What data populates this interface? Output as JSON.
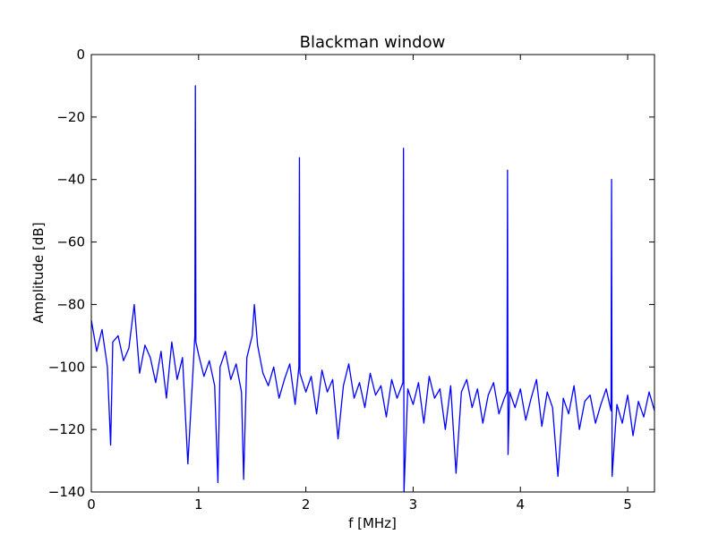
{
  "chart_data": {
    "type": "line",
    "title": "Blackman window",
    "xlabel": "f [MHz]",
    "ylabel": "Amplitude [dB]",
    "color": "#0000ff",
    "xlim": [
      0,
      5.25
    ],
    "ylim": [
      -140,
      0
    ],
    "xticks": [
      0,
      1,
      2,
      3,
      4,
      5
    ],
    "yticks": [
      {
        "value": -140,
        "label": "−140"
      },
      {
        "value": -120,
        "label": "−120"
      },
      {
        "value": -100,
        "label": "−100"
      },
      {
        "value": -80,
        "label": "−80"
      },
      {
        "value": -60,
        "label": "−60"
      },
      {
        "value": -40,
        "label": "−40"
      },
      {
        "value": -20,
        "label": "−20"
      },
      0
    ],
    "x": [
      0,
      0.05,
      0.1,
      0.15,
      0.18,
      0.2,
      0.25,
      0.3,
      0.35,
      0.4,
      0.45,
      0.5,
      0.55,
      0.6,
      0.65,
      0.7,
      0.75,
      0.8,
      0.85,
      0.9,
      0.95,
      0.965,
      0.97,
      0.975,
      1.0,
      1.05,
      1.1,
      1.15,
      1.18,
      1.2,
      1.25,
      1.3,
      1.35,
      1.4,
      1.42,
      1.45,
      1.5,
      1.52,
      1.55,
      1.6,
      1.65,
      1.7,
      1.75,
      1.8,
      1.85,
      1.9,
      1.935,
      1.94,
      1.945,
      2.0,
      2.05,
      2.1,
      2.15,
      2.2,
      2.25,
      2.3,
      2.35,
      2.4,
      2.45,
      2.5,
      2.55,
      2.6,
      2.65,
      2.7,
      2.75,
      2.8,
      2.85,
      2.905,
      2.91,
      2.915,
      2.95,
      3.0,
      3.05,
      3.1,
      3.15,
      3.2,
      3.25,
      3.3,
      3.35,
      3.4,
      3.45,
      3.5,
      3.55,
      3.6,
      3.65,
      3.7,
      3.75,
      3.8,
      3.85,
      3.875,
      3.88,
      3.885,
      3.9,
      3.95,
      4.0,
      4.05,
      4.1,
      4.15,
      4.2,
      4.25,
      4.3,
      4.35,
      4.4,
      4.45,
      4.5,
      4.55,
      4.6,
      4.65,
      4.7,
      4.75,
      4.8,
      4.845,
      4.85,
      4.855,
      4.9,
      4.95,
      5.0,
      5.05,
      5.1,
      5.15,
      5.2,
      5.25
    ],
    "values": [
      -85,
      -95,
      -88,
      -100,
      -125,
      -92,
      -90,
      -98,
      -94,
      -80,
      -102,
      -93,
      -97,
      -105,
      -95,
      -110,
      -92,
      -104,
      -97,
      -131,
      -100,
      -90,
      -10,
      -92,
      -96,
      -103,
      -98,
      -106,
      -137,
      -100,
      -95,
      -104,
      -99,
      -108,
      -136,
      -97,
      -90,
      -80,
      -93,
      -102,
      -106,
      -100,
      -110,
      -104,
      -99,
      -112,
      -100,
      -33,
      -102,
      -108,
      -103,
      -115,
      -101,
      -108,
      -104,
      -123,
      -106,
      -99,
      -110,
      -105,
      -113,
      -102,
      -109,
      -106,
      -116,
      -104,
      -110,
      -105,
      -30,
      -140,
      -107,
      -112,
      -105,
      -118,
      -103,
      -110,
      -107,
      -120,
      -106,
      -134,
      -108,
      -104,
      -113,
      -107,
      -118,
      -109,
      -105,
      -115,
      -110,
      -108,
      -37,
      -128,
      -108,
      -113,
      -107,
      -117,
      -110,
      -104,
      -119,
      -108,
      -113,
      -135,
      -110,
      -115,
      -106,
      -120,
      -111,
      -109,
      -118,
      -112,
      -107,
      -114,
      -40,
      -135,
      -112,
      -118,
      -109,
      -122,
      -111,
      -116,
      -108,
      -114
    ]
  }
}
